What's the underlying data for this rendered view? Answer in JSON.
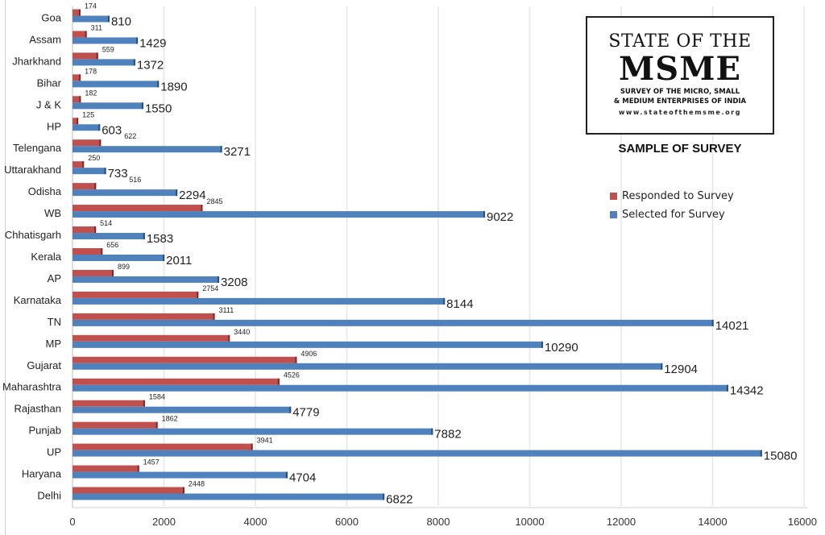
{
  "chart_data": {
    "type": "bar",
    "orientation": "horizontal",
    "title": "SAMPLE OF SURVEY",
    "xlabel": "",
    "ylabel": "",
    "xlim": [
      0,
      16000
    ],
    "x_ticks": [
      0,
      2000,
      4000,
      6000,
      8000,
      10000,
      12000,
      14000,
      16000
    ],
    "grid": true,
    "legend_position": "right",
    "categories": [
      "Goa",
      "Assam",
      "Jharkhand",
      "Bihar",
      "J & K",
      "HP",
      "Telengana",
      "Uttarakhand",
      "Odisha",
      "WB",
      "Chhatisgarh",
      "Kerala",
      "AP",
      "Karnataka",
      "TN",
      "MP",
      "Gujarat",
      "Maharashtra",
      "Rajasthan",
      "Punjab",
      "UP",
      "Haryana",
      "Delhi"
    ],
    "series": [
      {
        "name": "Responded to Survey",
        "color": "#c0504d",
        "values": [
          174,
          311,
          559,
          178,
          182,
          125,
          622,
          250,
          516,
          2845,
          514,
          656,
          899,
          2754,
          3111,
          3440,
          4906,
          4526,
          1584,
          1862,
          3941,
          1457,
          2448
        ]
      },
      {
        "name": "Selected for Survey",
        "color": "#4f81bd",
        "values": [
          810,
          1429,
          1372,
          1890,
          1550,
          603,
          3271,
          733,
          2294,
          9022,
          1583,
          2011,
          3208,
          8144,
          14021,
          10290,
          12904,
          14342,
          4779,
          7882,
          15080,
          4704,
          6822
        ]
      }
    ]
  },
  "logo": {
    "line1": "STATE OF THE",
    "line2": "MSME",
    "sub1": "SURVEY OF THE MICRO, SMALL",
    "sub2": "& MEDIUM ENTERPRISES OF INDIA",
    "url": "www.stateofthemsme.org"
  }
}
